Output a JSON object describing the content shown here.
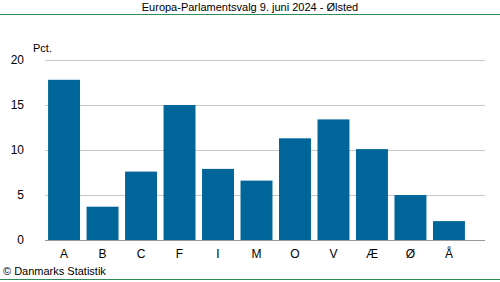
{
  "chart_data": {
    "type": "bar",
    "title": "Europa-Parlamentsvalg 9. juni 2024 - Ølsted",
    "y_label": "Pct.",
    "footer": "© Danmarks Statistik",
    "categories": [
      "A",
      "B",
      "C",
      "F",
      "I",
      "M",
      "O",
      "V",
      "Æ",
      "Ø",
      "Å"
    ],
    "values": [
      17.8,
      3.7,
      7.6,
      15.0,
      7.9,
      6.6,
      11.3,
      13.4,
      10.1,
      5.0,
      2.1
    ],
    "color": "#006699",
    "ylim": [
      0,
      20
    ],
    "yticks": [
      0,
      5,
      10,
      15,
      20
    ],
    "grid": true
  }
}
